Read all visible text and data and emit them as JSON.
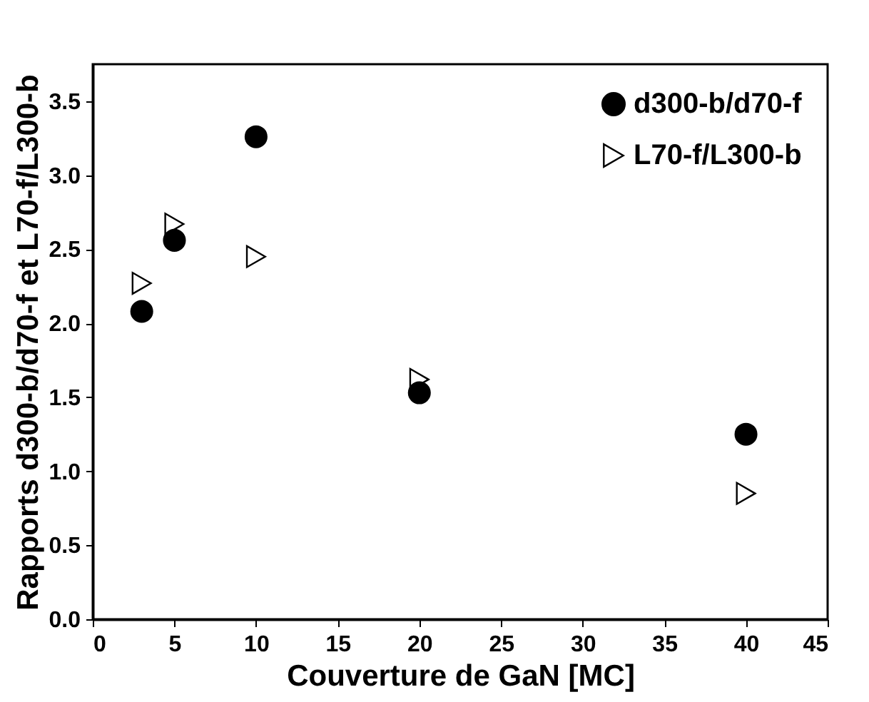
{
  "chart_data": {
    "type": "scatter",
    "xlabel": "Couverture de GaN [MC]",
    "ylabel": "Rapports d300-b/d70-f et L70-f/L300-b",
    "x": [
      3,
      5,
      10,
      20,
      40
    ],
    "series": [
      {
        "name": "d300-b/d70-f",
        "color": "#000000",
        "marker": "circle",
        "values": [
          2.08,
          2.56,
          3.26,
          1.53,
          1.25
        ]
      },
      {
        "name": "L70-f/L300-b",
        "color": "#000000",
        "marker": "triangle",
        "values": [
          2.27,
          2.67,
          2.45,
          1.62,
          0.85
        ]
      }
    ],
    "xlim": [
      0,
      45
    ],
    "xticks": [
      0,
      5,
      10,
      15,
      20,
      25,
      30,
      35,
      40,
      45
    ],
    "ylim": [
      0,
      3.75
    ],
    "yticks": [
      {
        "value": 0,
        "label": "0.0"
      },
      {
        "value": 0.5,
        "label": "0.5"
      },
      {
        "value": 1,
        "label": "1.0"
      },
      {
        "value": 1.5,
        "label": "1.5"
      },
      {
        "value": 2,
        "label": "2.0"
      },
      {
        "value": 2.5,
        "label": "2.5"
      },
      {
        "value": 3,
        "label": "3.0"
      },
      {
        "value": 3.5,
        "label": "3.5"
      }
    ],
    "grid": false,
    "legend": "top right"
  }
}
